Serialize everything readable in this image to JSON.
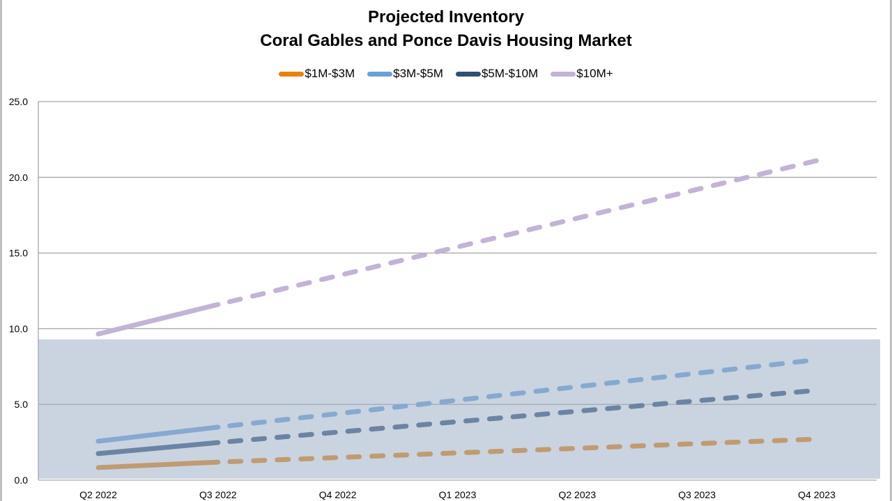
{
  "chart_data": {
    "type": "line",
    "title": "Projected Inventory",
    "subtitle": "Coral Gables and Ponce Davis Housing Market",
    "xlabel": "",
    "ylabel": "",
    "categories": [
      "Q2 2022",
      "Q3 2022",
      "Q4 2022",
      "Q1 2023",
      "Q2 2023",
      "Q3 2023",
      "Q4 2023"
    ],
    "ylim": [
      0,
      25
    ],
    "yticks": [
      "0.0",
      "5.0",
      "10.0",
      "15.0",
      "20.0",
      "25.0"
    ],
    "ytick_values": [
      0,
      5,
      10,
      15,
      20,
      25
    ],
    "grid": true,
    "legend_position": "top",
    "actual_through_index": 1,
    "projection_note": "solid = actual (Q2 2022–Q3 2022), dashed = projected",
    "shaded_band": {
      "from": 0,
      "to": 9.3,
      "color": "#9FB0C6",
      "opacity": 0.55
    },
    "series": [
      {
        "name": "$1M-$3M",
        "color": "#E8820C",
        "values": [
          0.83,
          1.19,
          1.49,
          1.8,
          2.1,
          2.41,
          2.71
        ]
      },
      {
        "name": "$3M-$5M",
        "color": "#6AA0DC",
        "values": [
          2.57,
          3.5,
          4.39,
          5.28,
          6.17,
          7.06,
          7.95
        ]
      },
      {
        "name": "$5M-$10M",
        "color": "#2F4E78",
        "values": [
          1.75,
          2.48,
          3.17,
          3.86,
          4.55,
          5.24,
          5.93
        ]
      },
      {
        "name": "$10M+",
        "color": "#C3B3D6",
        "values": [
          9.65,
          11.6,
          13.5,
          15.4,
          17.3,
          19.2,
          21.1
        ]
      }
    ]
  }
}
